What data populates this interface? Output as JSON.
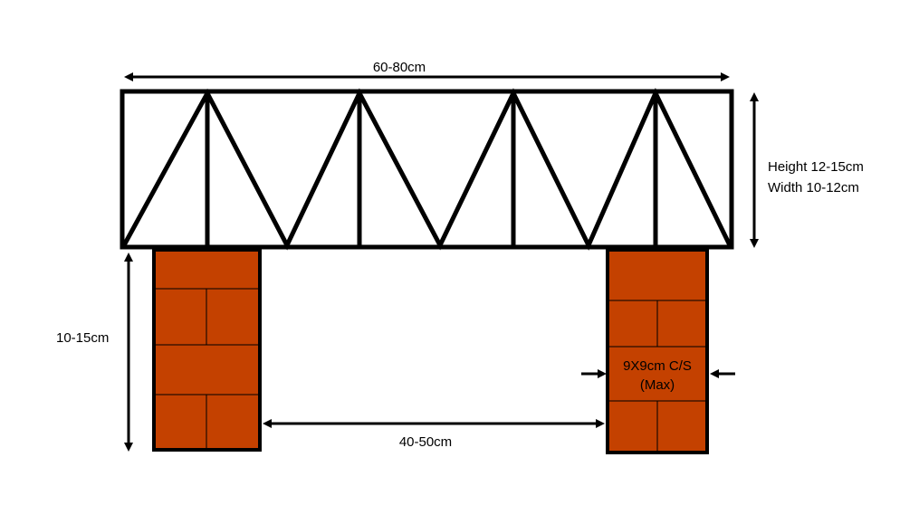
{
  "labels": {
    "span": "60-80cm",
    "truss_height": "Height 12-15cm",
    "truss_width": "Width 10-12cm",
    "pier_height": "10-15cm",
    "gap": "40-50cm",
    "cross_section_line1": "9X9cm C/S",
    "cross_section_line2": "(Max)"
  },
  "colors": {
    "brick": "#c44100",
    "stroke": "#000000",
    "mortar": "#000000",
    "background": "#ffffff"
  }
}
